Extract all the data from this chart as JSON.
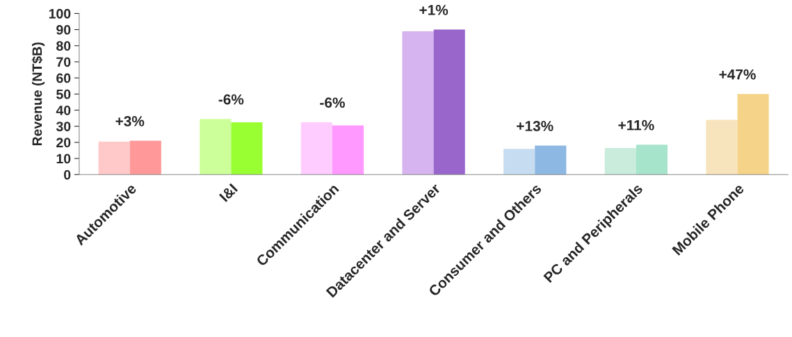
{
  "chart_data": {
    "type": "bar",
    "ylabel": "Revenue (NT$B)",
    "categories": [
      "Automotive",
      "I&I",
      "Communication",
      "Datacenter and Server",
      "Consumer and Others",
      "PC and Peripherals",
      "Mobile Phone"
    ],
    "series": [
      {
        "colors": [
          "#ffc9c9",
          "#ccff99",
          "#ffccff",
          "#d6b4f0",
          "#c6dcf0",
          "#c9ecdc",
          "#f8e4bc"
        ],
        "values": [
          20.5,
          34.5,
          32.5,
          89,
          16,
          16.5,
          34
        ]
      },
      {
        "colors": [
          "#ff9999",
          "#99ff33",
          "#ff99ff",
          "#9966cc",
          "#8db8e3",
          "#a6e4cc",
          "#f5d48a"
        ],
        "values": [
          21,
          32.5,
          30.5,
          90,
          18,
          18.5,
          50
        ]
      }
    ],
    "ylim": [
      0,
      100
    ],
    "yticks": [
      0,
      10,
      20,
      30,
      40,
      50,
      60,
      70,
      80,
      90,
      100
    ],
    "grid": false,
    "legend": false,
    "annotations": [
      "+3%",
      "-6%",
      "-6%",
      "+1%",
      "+13%",
      "+11%",
      "+47%"
    ]
  }
}
